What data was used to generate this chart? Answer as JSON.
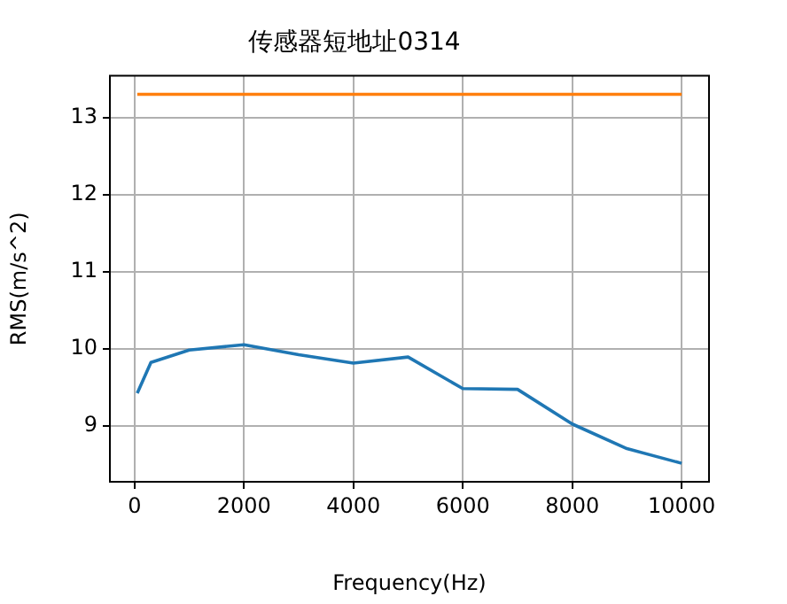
{
  "chart_data": {
    "type": "line",
    "title": "传感器短地址0314",
    "xlabel": "Frequency(Hz)",
    "ylabel": "RMS(m/s^2)",
    "series": [
      {
        "color": "#1f77b4",
        "x": [
          50,
          300,
          1000,
          2000,
          3000,
          4000,
          5000,
          6000,
          7000,
          8000,
          9000,
          10000
        ],
        "values": [
          9.42,
          9.82,
          9.98,
          10.05,
          9.92,
          9.81,
          9.89,
          9.48,
          9.47,
          9.02,
          8.7,
          8.51
        ]
      },
      {
        "color": "#ff7f0e",
        "x": [
          50,
          10000
        ],
        "values": [
          13.3,
          13.3
        ]
      }
    ],
    "xlim": [
      -450,
      10500
    ],
    "xticks": [
      0,
      2000,
      4000,
      6000,
      8000,
      10000
    ],
    "ylim": [
      8.27,
      13.54
    ],
    "yticks": [
      9,
      10,
      11,
      12,
      13
    ],
    "grid": true,
    "legend": false,
    "marker": "none",
    "line_style": "solid"
  }
}
